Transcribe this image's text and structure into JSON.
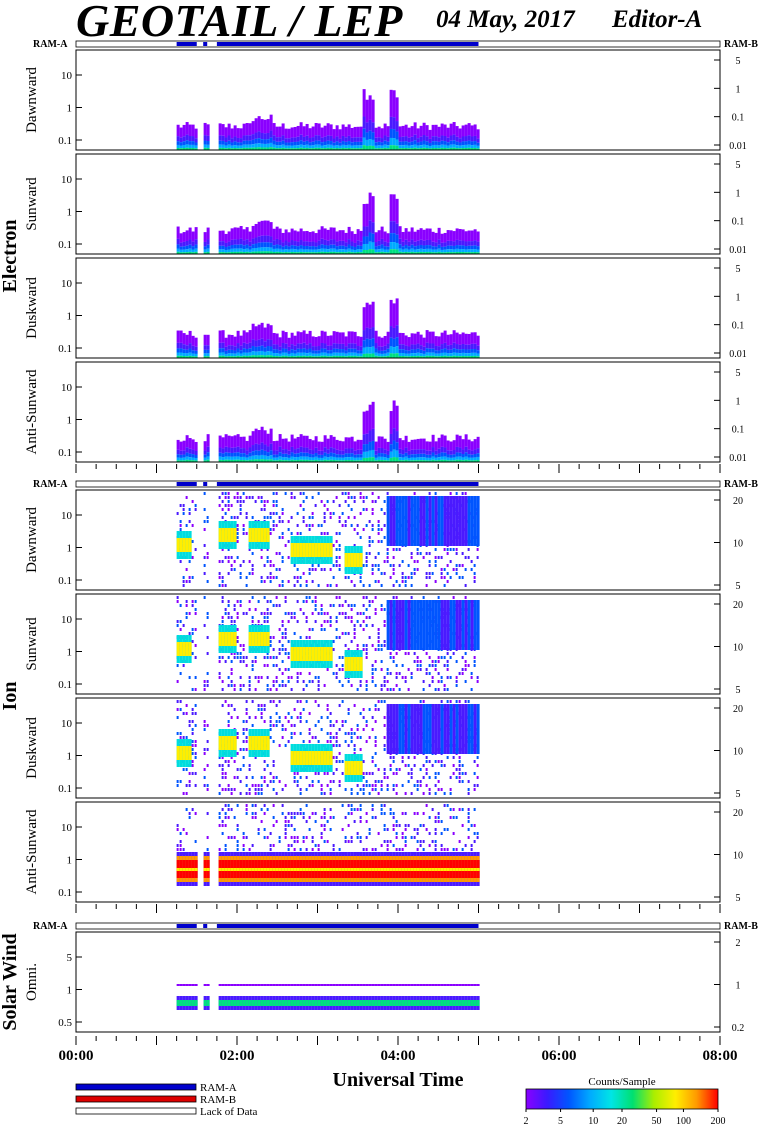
{
  "header": {
    "title": "GEOTAIL / LEP",
    "date": "04 May, 2017",
    "editor": "Editor-A"
  },
  "ram_labels": {
    "left": "RAM-A",
    "right": "RAM-B"
  },
  "x_axis": {
    "label": "Universal Time",
    "ticks": [
      "00:00",
      "02:00",
      "04:00",
      "06:00",
      "08:00"
    ]
  },
  "legend": {
    "items": [
      {
        "label": "RAM-A",
        "color": "#0000cc"
      },
      {
        "label": "RAM-B",
        "color": "#dd0000"
      },
      {
        "label": "Lack of Data",
        "color": "#ffffff"
      }
    ]
  },
  "colorbar": {
    "title": "Counts/Sample",
    "ticks": [
      "2",
      "5",
      "10",
      "20",
      "50",
      "100",
      "200"
    ]
  },
  "chart_data": {
    "type": "heatmap",
    "x_range_hours": [
      0,
      8
    ],
    "data_coverage_hours": [
      1.25,
      5.0
    ],
    "data_gaps_hours": [
      [
        1.5,
        1.58
      ],
      [
        1.63,
        1.75
      ]
    ],
    "groups": [
      {
        "name": "Electron",
        "panels": [
          {
            "label": "Dawnward",
            "left_ticks": [
              "10",
              "1",
              "0.1"
            ],
            "right_ticks": [
              "5",
              "1",
              "0.1",
              "0.01"
            ]
          },
          {
            "label": "Sunward",
            "left_ticks": [
              "10",
              "1",
              "0.1"
            ],
            "right_ticks": [
              "5",
              "1",
              "0.1",
              "0.01"
            ]
          },
          {
            "label": "Duskward",
            "left_ticks": [
              "10",
              "1",
              "0.1"
            ],
            "right_ticks": [
              "5",
              "1",
              "0.1",
              "0.01"
            ]
          },
          {
            "label": "Anti-Sunward",
            "left_ticks": [
              "10",
              "1",
              "0.1"
            ],
            "right_ticks": [
              "5",
              "1",
              "0.1",
              "0.01"
            ]
          }
        ]
      },
      {
        "name": "Ion",
        "panels": [
          {
            "label": "Dawnward",
            "left_ticks": [
              "10",
              "1",
              "0.1"
            ],
            "right_ticks": [
              "20",
              "10",
              "5"
            ]
          },
          {
            "label": "Sunward",
            "left_ticks": [
              "10",
              "1",
              "0.1"
            ],
            "right_ticks": [
              "20",
              "10",
              "5"
            ]
          },
          {
            "label": "Duskward",
            "left_ticks": [
              "10",
              "1",
              "0.1"
            ],
            "right_ticks": [
              "20",
              "10",
              "5"
            ]
          },
          {
            "label": "Anti-Sunward",
            "left_ticks": [
              "10",
              "1",
              "0.1"
            ],
            "right_ticks": [
              "20",
              "10",
              "5"
            ]
          }
        ]
      },
      {
        "name": "Solar Wind",
        "panels": [
          {
            "label": "Omni.",
            "left_ticks": [
              "5",
              "1",
              "0.5"
            ],
            "right_ticks": [
              "2",
              "1",
              "0.2"
            ]
          }
        ]
      }
    ]
  }
}
